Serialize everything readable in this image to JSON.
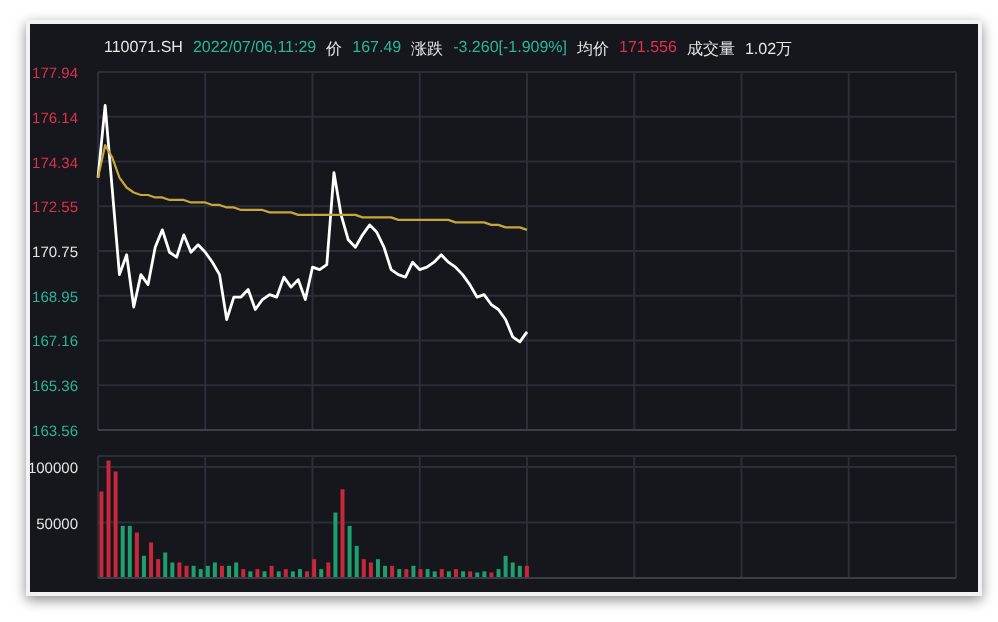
{
  "chart_data": [
    {
      "type": "line",
      "annotations": [
        "110071.SH",
        "2022/07/06,11:29",
        "价",
        "167.49",
        "涨跌",
        "-3.260[-1.909%]",
        "均价",
        "171.556",
        "成交量",
        "1.02万"
      ],
      "categories": [
        null,
        null,
        null,
        null,
        null,
        null,
        null,
        null,
        null,
        null,
        null,
        null,
        null,
        null,
        null,
        null,
        null,
        null,
        null,
        null,
        null,
        null,
        null,
        null,
        null,
        null,
        null,
        null,
        null,
        null,
        null,
        null,
        null,
        null,
        null,
        null,
        null,
        null,
        null,
        null,
        null,
        null,
        null,
        null,
        null,
        null,
        null,
        null,
        null,
        null,
        null,
        null,
        null,
        null,
        null,
        null,
        null,
        null,
        null,
        null,
        null,
        null,
        null,
        null,
        null,
        null,
        null,
        null,
        null,
        null,
        null,
        null,
        null,
        null,
        null,
        null,
        null,
        null,
        null,
        null,
        null,
        null,
        null,
        null,
        null,
        null,
        null,
        null,
        null,
        null,
        null,
        null,
        null,
        null,
        null,
        null,
        null,
        null,
        null,
        null,
        null,
        null,
        null,
        null,
        null,
        null,
        null,
        null,
        null,
        null,
        null,
        null,
        null,
        null,
        null,
        null,
        null,
        null,
        null,
        null,
        null
      ],
      "series": [
        {
          "color": "#ffffff",
          "values": [
            173.7,
            176.6,
            173.2,
            169.8,
            170.6,
            168.5,
            169.8,
            169.4,
            170.9,
            171.6,
            170.7,
            170.5,
            171.4,
            170.7,
            171.0,
            170.7,
            170.3,
            169.8,
            168.0,
            168.9,
            168.9,
            169.2,
            168.4,
            168.8,
            169.0,
            168.9,
            169.7,
            169.3,
            169.6,
            168.8,
            170.1,
            170.0,
            170.2,
            173.9,
            172.2,
            171.2,
            170.9,
            171.4,
            171.8,
            171.5,
            170.9,
            170.0,
            169.8,
            169.7,
            170.3,
            170.0,
            170.1,
            170.3,
            170.6,
            170.3,
            170.1,
            169.8,
            169.4,
            168.9,
            169.0,
            168.6,
            168.4,
            168.0,
            167.3,
            167.1,
            167.5,
            null,
            null,
            null,
            null,
            null,
            null,
            null,
            null,
            null,
            null,
            null,
            null,
            null,
            null,
            null,
            null,
            null,
            null,
            null,
            null,
            null,
            null,
            null,
            null,
            null,
            null,
            null,
            null,
            null,
            null,
            null,
            null,
            null,
            null,
            null,
            null,
            null,
            null,
            null,
            null,
            null,
            null,
            null,
            null,
            null,
            null,
            null,
            null,
            null,
            null,
            null,
            null,
            null,
            null,
            null,
            null,
            null,
            null,
            null,
            null
          ]
        },
        {
          "color": "#c9a53a",
          "values": [
            173.7,
            175.0,
            174.5,
            173.7,
            173.3,
            173.1,
            173.0,
            173.0,
            172.9,
            172.9,
            172.8,
            172.8,
            172.8,
            172.7,
            172.7,
            172.7,
            172.6,
            172.6,
            172.5,
            172.5,
            172.4,
            172.4,
            172.4,
            172.4,
            172.3,
            172.3,
            172.3,
            172.3,
            172.2,
            172.2,
            172.2,
            172.2,
            172.2,
            172.2,
            172.2,
            172.2,
            172.2,
            172.1,
            172.1,
            172.1,
            172.1,
            172.1,
            172.0,
            172.0,
            172.0,
            172.0,
            172.0,
            172.0,
            172.0,
            172.0,
            171.9,
            171.9,
            171.9,
            171.9,
            171.9,
            171.8,
            171.8,
            171.7,
            171.7,
            171.7,
            171.6,
            null,
            null,
            null,
            null,
            null,
            null,
            null,
            null,
            null,
            null,
            null,
            null,
            null,
            null,
            null,
            null,
            null,
            null,
            null,
            null,
            null,
            null,
            null,
            null,
            null,
            null,
            null,
            null,
            null,
            null,
            null,
            null,
            null,
            null,
            null,
            null,
            null,
            null,
            null,
            null,
            null,
            null,
            null,
            null,
            null,
            null,
            null,
            null,
            null,
            null,
            null,
            null,
            null,
            null,
            null,
            null,
            null,
            null,
            null,
            null
          ]
        }
      ],
      "ylim": [
        163.56,
        177.94
      ],
      "yticks": [
        163.56,
        165.36,
        167.16,
        168.95,
        170.75,
        172.55,
        174.34,
        176.14,
        177.94
      ],
      "grid": true,
      "marker": "none",
      "line_style": "solid",
      "tick_labels": "y",
      "legend": false
    },
    {
      "type": "bar",
      "categories": [
        null,
        null,
        null,
        null,
        null,
        null,
        null,
        null,
        null,
        null,
        null,
        null,
        null,
        null,
        null,
        null,
        null,
        null,
        null,
        null,
        null,
        null,
        null,
        null,
        null,
        null,
        null,
        null,
        null,
        null,
        null,
        null,
        null,
        null,
        null,
        null,
        null,
        null,
        null,
        null,
        null,
        null,
        null,
        null,
        null,
        null,
        null,
        null,
        null,
        null,
        null,
        null,
        null,
        null,
        null,
        null,
        null,
        null,
        null,
        null,
        null,
        null,
        null,
        null,
        null,
        null,
        null,
        null,
        null,
        null,
        null,
        null,
        null,
        null,
        null,
        null,
        null,
        null,
        null,
        null,
        null,
        null,
        null,
        null,
        null,
        null,
        null,
        null,
        null,
        null,
        null,
        null,
        null,
        null,
        null,
        null,
        null,
        null,
        null,
        null,
        null,
        null,
        null,
        null,
        null,
        null,
        null,
        null,
        null,
        null,
        null,
        null,
        null,
        null,
        null,
        null,
        null,
        null,
        null,
        null,
        null
      ],
      "values": [
        78000,
        106000,
        96000,
        47000,
        47000,
        41000,
        20000,
        32000,
        17000,
        23000,
        14000,
        14000,
        11000,
        11000,
        8000,
        11000,
        14000,
        11000,
        11000,
        14000,
        8000,
        6000,
        8000,
        6000,
        11000,
        6000,
        8000,
        6000,
        8000,
        6000,
        17000,
        8000,
        14000,
        59000,
        80000,
        47000,
        29000,
        17000,
        14000,
        17000,
        11000,
        11000,
        8000,
        8000,
        11000,
        8000,
        8000,
        6000,
        8000,
        6000,
        8000,
        6000,
        6000,
        5000,
        6000,
        5000,
        8000,
        20000,
        14000,
        11000,
        11000,
        null,
        null,
        null,
        null,
        null,
        null,
        null,
        null,
        null,
        null,
        null,
        null,
        null,
        null,
        null,
        null,
        null,
        null,
        null,
        null,
        null,
        null,
        null,
        null,
        null,
        null,
        null,
        null,
        null,
        null,
        null,
        null,
        null,
        null,
        null,
        null,
        null,
        null,
        null,
        null,
        null,
        null,
        null,
        null,
        null,
        null,
        null,
        null,
        null,
        null,
        null,
        null,
        null,
        null,
        null,
        null,
        null,
        null,
        null,
        null
      ],
      "colors": [
        "#c8283c",
        "#c8283c",
        "#c8283c",
        "#1f9f6e",
        "#1f9f6e",
        "#c8283c",
        "#1f9f6e",
        "#c8283c",
        "#c8283c",
        "#1f9f6e",
        "#1f9f6e",
        "#c8283c",
        "#c8283c",
        "#1f9f6e",
        "#1f9f6e",
        "#1f9f6e",
        "#1f9f6e",
        "#c8283c",
        "#1f9f6e",
        "#1f9f6e",
        "#c8283c",
        "#1f9f6e",
        "#c8283c",
        "#1f9f6e",
        "#c8283c",
        "#1f9f6e",
        "#c8283c",
        "#1f9f6e",
        "#1f9f6e",
        "#c8283c",
        "#c8283c",
        "#1f9f6e",
        "#c8283c",
        "#1f9f6e",
        "#c8283c",
        "#1f9f6e",
        "#1f9f6e",
        "#c8283c",
        "#c8283c",
        "#1f9f6e",
        "#1f9f6e",
        "#c8283c",
        "#1f9f6e",
        "#c8283c",
        "#1f9f6e",
        "#c8283c",
        "#1f9f6e",
        "#1f9f6e",
        "#c8283c",
        "#1f9f6e",
        "#c8283c",
        "#1f9f6e",
        "#c8283c",
        "#1f9f6e",
        "#1f9f6e",
        "#c8283c",
        "#1f9f6e",
        "#1f9f6e",
        "#1f9f6e",
        "#1f9f6e",
        "#c8283c",
        null,
        null,
        null,
        null,
        null,
        null,
        null,
        null,
        null,
        null,
        null,
        null,
        null,
        null,
        null,
        null,
        null,
        null,
        null,
        null,
        null,
        null,
        null,
        null,
        null,
        null,
        null,
        null,
        null,
        null,
        null,
        null,
        null,
        null,
        null,
        null,
        null,
        null,
        null,
        null,
        null,
        null,
        null,
        null,
        null,
        null,
        null,
        null,
        null,
        null,
        null,
        null,
        null,
        null,
        null,
        null,
        null,
        null,
        null,
        null
      ],
      "ylim": [
        0,
        110000
      ],
      "yticks": [
        50000,
        100000
      ],
      "grid": true,
      "tick_labels": "y",
      "legend": false
    }
  ]
}
